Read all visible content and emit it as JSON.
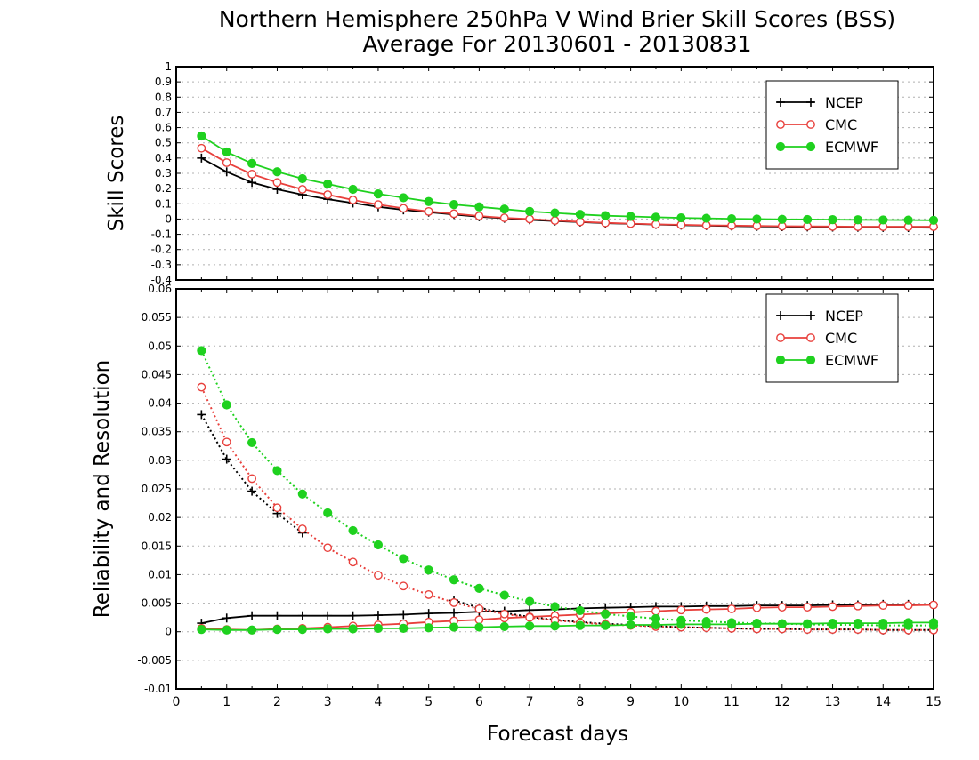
{
  "title_line1": "Northern Hemisphere 250hPa V Wind Brier Skill Scores (BSS)",
  "title_line2": "Average For 20130601 - 20130831",
  "colors": {
    "NCEP": "#000000",
    "CMC": "#e8403c",
    "ECMWF": "#1fd11f"
  },
  "chart_data": [
    {
      "type": "line",
      "ylabel": "Skill Scores",
      "xlabel": "",
      "xlim": [
        0,
        15
      ],
      "ylim": [
        -0.4,
        1
      ],
      "yticks": [
        "-0.4",
        "-0.3",
        "-0.2",
        "-0.1",
        "0",
        "0.1",
        "0.2",
        "0.3",
        "0.4",
        "0.5",
        "0.6",
        "0.7",
        "0.8",
        "0.9",
        "1"
      ],
      "grid": true,
      "legend": "top-right",
      "x": [
        0.5,
        1,
        1.5,
        2,
        2.5,
        3,
        3.5,
        4,
        4.5,
        5,
        5.5,
        6,
        6.5,
        7,
        7.5,
        8,
        8.5,
        9,
        9.5,
        10,
        10.5,
        11,
        11.5,
        12,
        12.5,
        13,
        13.5,
        14,
        14.5,
        15
      ],
      "series": [
        {
          "name": "NCEP",
          "marker": "plus",
          "style": "solid",
          "values": [
            0.4,
            0.31,
            0.24,
            0.195,
            0.16,
            0.13,
            0.105,
            0.08,
            0.06,
            0.045,
            0.03,
            0.015,
            0.005,
            -0.005,
            -0.013,
            -0.02,
            -0.027,
            -0.032,
            -0.036,
            -0.04,
            -0.043,
            -0.046,
            -0.048,
            -0.05,
            -0.052,
            -0.053,
            -0.054,
            -0.055,
            -0.056,
            -0.057
          ]
        },
        {
          "name": "CMC",
          "marker": "open-circle",
          "style": "solid",
          "values": [
            0.465,
            0.37,
            0.295,
            0.24,
            0.195,
            0.16,
            0.125,
            0.095,
            0.07,
            0.05,
            0.035,
            0.02,
            0.008,
            0.0,
            -0.01,
            -0.018,
            -0.025,
            -0.03,
            -0.035,
            -0.038,
            -0.041,
            -0.043,
            -0.045,
            -0.047,
            -0.048,
            -0.049,
            -0.05,
            -0.05,
            -0.05,
            -0.05
          ]
        },
        {
          "name": "ECMWF",
          "marker": "filled-circle",
          "style": "solid",
          "values": [
            0.545,
            0.44,
            0.365,
            0.31,
            0.265,
            0.23,
            0.195,
            0.165,
            0.14,
            0.115,
            0.095,
            0.08,
            0.065,
            0.05,
            0.04,
            0.03,
            0.022,
            0.017,
            0.012,
            0.008,
            0.005,
            0.002,
            0.0,
            -0.002,
            -0.003,
            -0.004,
            -0.005,
            -0.006,
            -0.007,
            -0.008
          ]
        }
      ]
    },
    {
      "type": "line",
      "ylabel": "Reliability and Resolution",
      "xlabel": "Forecast days",
      "xlim": [
        0,
        15
      ],
      "ylim": [
        -0.01,
        0.06
      ],
      "yticks": [
        "-0.01",
        "-0.005",
        "0",
        "0.005",
        "0.01",
        "0.015",
        "0.02",
        "0.025",
        "0.03",
        "0.035",
        "0.04",
        "0.045",
        "0.05",
        "0.055",
        "0.06"
      ],
      "xticks": [
        "0",
        "1",
        "2",
        "3",
        "4",
        "5",
        "6",
        "7",
        "8",
        "9",
        "10",
        "11",
        "12",
        "13",
        "14",
        "15"
      ],
      "grid": true,
      "legend": "top-right",
      "x": [
        0.5,
        1,
        1.5,
        2,
        2.5,
        3,
        3.5,
        4,
        4.5,
        5,
        5.5,
        6,
        6.5,
        7,
        7.5,
        8,
        8.5,
        9,
        9.5,
        10,
        10.5,
        11,
        11.5,
        12,
        12.5,
        13,
        13.5,
        14,
        14.5,
        15
      ],
      "series": [
        {
          "name": "NCEP",
          "metric": "reliability",
          "marker": "plus",
          "style": "solid",
          "values": [
            0.0015,
            0.0024,
            0.0028,
            0.0028,
            0.0028,
            0.0028,
            0.0028,
            0.0029,
            0.003,
            0.0032,
            0.0033,
            0.0035,
            0.0036,
            0.0038,
            0.0039,
            0.0041,
            0.0042,
            0.0043,
            0.0044,
            0.0044,
            0.0045,
            0.0045,
            0.0046,
            0.0046,
            0.0046,
            0.0047,
            0.0047,
            0.0048,
            0.0048,
            0.0048
          ]
        },
        {
          "name": "NCEP",
          "metric": "resolution",
          "marker": "plus",
          "style": "dotted",
          "values": [
            0.038,
            0.0302,
            0.0246,
            0.0207,
            0.0173,
            null,
            null,
            null,
            null,
            null,
            0.0055,
            0.0042,
            0.0033,
            0.0026,
            0.0021,
            0.0017,
            0.0014,
            0.0012,
            0.001,
            0.0008,
            0.0007,
            0.0006,
            0.0005,
            0.0005,
            0.0004,
            0.0004,
            0.0004,
            0.0003,
            0.0003,
            0.0003
          ]
        },
        {
          "name": "CMC",
          "metric": "reliability",
          "marker": "open-circle",
          "style": "solid",
          "values": [
            0.0006,
            0.0004,
            0.0003,
            0.0005,
            0.0006,
            0.0008,
            0.001,
            0.0012,
            0.0014,
            0.0017,
            0.0019,
            0.0021,
            0.0024,
            0.0026,
            0.0028,
            0.003,
            0.0032,
            0.0034,
            0.0036,
            0.0038,
            0.0039,
            0.004,
            0.0042,
            0.0043,
            0.0043,
            0.0044,
            0.0045,
            0.0046,
            0.0046,
            0.0047
          ]
        },
        {
          "name": "CMC",
          "metric": "resolution",
          "marker": "open-circle",
          "style": "dotted",
          "values": [
            0.0428,
            0.0332,
            0.0268,
            0.0217,
            0.018,
            0.0147,
            0.0122,
            0.0099,
            0.008,
            0.0065,
            0.0051,
            0.004,
            0.0031,
            0.0025,
            0.002,
            0.0016,
            0.0013,
            0.0011,
            0.0009,
            0.0008,
            0.0007,
            0.0006,
            0.0005,
            0.0005,
            0.0004,
            0.0004,
            0.0004,
            0.0003,
            0.0003,
            0.0003
          ]
        },
        {
          "name": "ECMWF",
          "metric": "reliability",
          "marker": "filled-circle",
          "style": "solid",
          "values": [
            0.0004,
            0.0003,
            0.0003,
            0.0004,
            0.0004,
            0.0005,
            0.0005,
            0.0006,
            0.0006,
            0.0007,
            0.0008,
            0.0008,
            0.0009,
            0.001,
            0.001,
            0.0011,
            0.0011,
            0.0012,
            0.0012,
            0.0013,
            0.0013,
            0.0013,
            0.0014,
            0.0014,
            0.0014,
            0.0015,
            0.0015,
            0.0015,
            0.0016,
            0.0016
          ]
        },
        {
          "name": "ECMWF",
          "metric": "resolution",
          "marker": "filled-circle",
          "style": "dotted",
          "values": [
            0.0492,
            0.0397,
            0.0331,
            0.0282,
            0.0241,
            0.0208,
            0.0177,
            0.0152,
            0.0128,
            0.0108,
            0.0091,
            0.0076,
            0.0064,
            0.0053,
            0.0044,
            0.0037,
            0.0031,
            0.0027,
            0.0023,
            0.002,
            0.0018,
            0.0016,
            0.0015,
            0.0014,
            0.0013,
            0.0012,
            0.0012,
            0.0011,
            0.0011,
            0.0011
          ]
        }
      ]
    }
  ]
}
